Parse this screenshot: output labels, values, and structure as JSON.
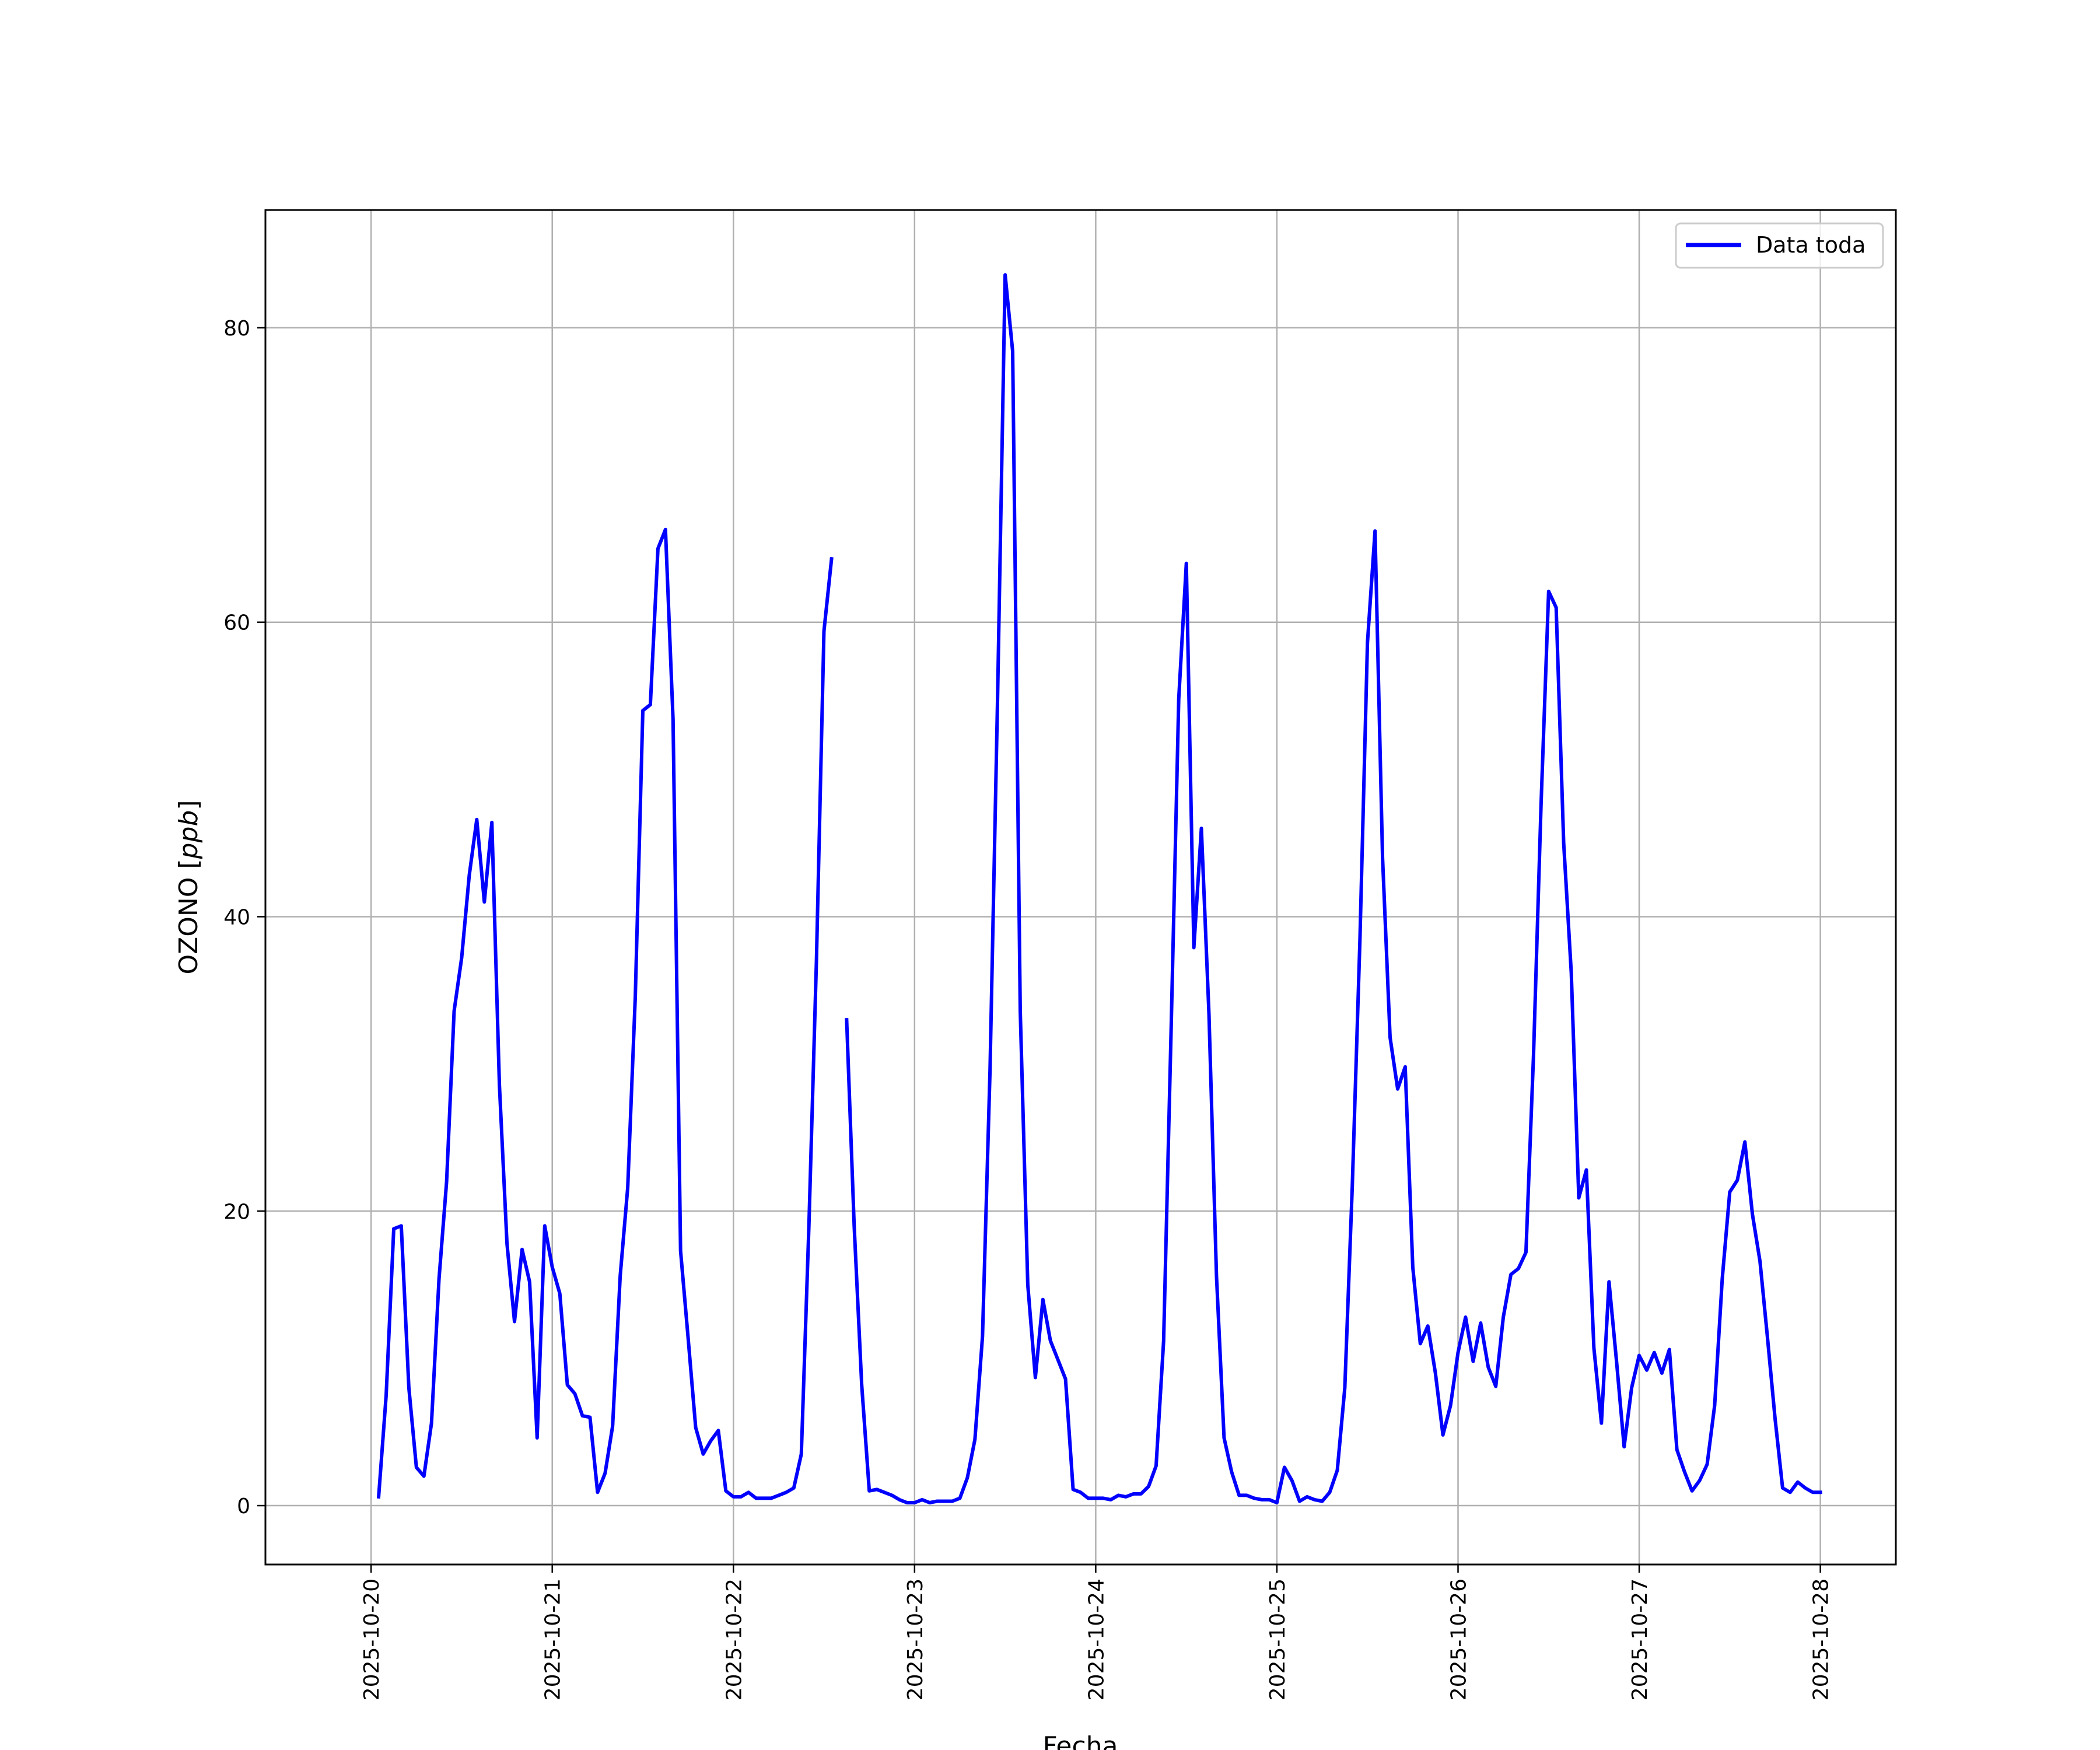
{
  "chart_data": {
    "type": "line",
    "xlabel": "Fecha",
    "ylabel_main": "OZONO [",
    "ylabel_unit": "ppb",
    "ylabel_end": "]",
    "x_ticks": [
      "2025-10-20",
      "2025-10-21",
      "2025-10-22",
      "2025-10-23",
      "2025-10-24",
      "2025-10-25",
      "2025-10-26",
      "2025-10-27",
      "2025-10-28"
    ],
    "y_ticks": [
      0,
      20,
      40,
      60,
      80
    ],
    "xlim": [
      "2025-10-19 10:00",
      "2025-10-28 10:00"
    ],
    "ylim": [
      -4,
      88
    ],
    "grid": true,
    "legend_position": "upper right",
    "line_color": "#0000ff",
    "series": [
      {
        "name": "Data toda",
        "segments": [
          [
            [
              "2025-10-20 01:00",
              0.6
            ],
            [
              "2025-10-20 02:00",
              7.5
            ],
            [
              "2025-10-20 03:00",
              18.8
            ],
            [
              "2025-10-20 04:00",
              19.0
            ],
            [
              "2025-10-20 05:00",
              8.0
            ],
            [
              "2025-10-20 06:00",
              2.6
            ],
            [
              "2025-10-20 07:00",
              2.0
            ],
            [
              "2025-10-20 08:00",
              5.6
            ],
            [
              "2025-10-20 09:00",
              15.4
            ],
            [
              "2025-10-20 10:00",
              22.0
            ],
            [
              "2025-10-20 11:00",
              33.6
            ],
            [
              "2025-10-20 12:00",
              37.2
            ],
            [
              "2025-10-20 13:00",
              42.8
            ],
            [
              "2025-10-20 14:00",
              46.6
            ],
            [
              "2025-10-20 15:00",
              41.0
            ],
            [
              "2025-10-20 16:00",
              46.4
            ],
            [
              "2025-10-20 17:00",
              28.6
            ],
            [
              "2025-10-20 18:00",
              17.8
            ],
            [
              "2025-10-20 19:00",
              12.5
            ],
            [
              "2025-10-20 20:00",
              17.4
            ],
            [
              "2025-10-20 21:00",
              15.2
            ],
            [
              "2025-10-20 22:00",
              4.6
            ],
            [
              "2025-10-20 23:00",
              19.0
            ],
            [
              "2025-10-21 00:00",
              16.2
            ],
            [
              "2025-10-21 01:00",
              14.4
            ],
            [
              "2025-10-21 02:00",
              8.2
            ],
            [
              "2025-10-21 03:00",
              7.6
            ],
            [
              "2025-10-21 04:00",
              6.1
            ],
            [
              "2025-10-21 05:00",
              6.0
            ],
            [
              "2025-10-21 06:00",
              0.9
            ],
            [
              "2025-10-21 07:00",
              2.2
            ],
            [
              "2025-10-21 08:00",
              5.4
            ],
            [
              "2025-10-21 09:00",
              15.6
            ],
            [
              "2025-10-21 10:00",
              21.6
            ],
            [
              "2025-10-21 11:00",
              34.6
            ],
            [
              "2025-10-21 12:00",
              54.0
            ],
            [
              "2025-10-21 13:00",
              54.4
            ],
            [
              "2025-10-21 14:00",
              65.0
            ],
            [
              "2025-10-21 15:00",
              66.3
            ],
            [
              "2025-10-21 16:00",
              53.4
            ],
            [
              "2025-10-21 17:00",
              17.3
            ],
            [
              "2025-10-21 18:00",
              11.4
            ],
            [
              "2025-10-21 19:00",
              5.3
            ],
            [
              "2025-10-21 20:00",
              3.5
            ],
            [
              "2025-10-21 21:00",
              4.4
            ],
            [
              "2025-10-21 22:00",
              5.1
            ],
            [
              "2025-10-21 23:00",
              1.0
            ],
            [
              "2025-10-22 00:00",
              0.6
            ],
            [
              "2025-10-22 01:00",
              0.6
            ],
            [
              "2025-10-22 02:00",
              0.9
            ],
            [
              "2025-10-22 03:00",
              0.5
            ],
            [
              "2025-10-22 04:00",
              0.5
            ],
            [
              "2025-10-22 05:00",
              0.5
            ],
            [
              "2025-10-22 06:00",
              0.7
            ],
            [
              "2025-10-22 07:00",
              0.9
            ],
            [
              "2025-10-22 08:00",
              1.2
            ],
            [
              "2025-10-22 09:00",
              3.5
            ],
            [
              "2025-10-22 10:00",
              19.0
            ],
            [
              "2025-10-22 11:00",
              37.0
            ],
            [
              "2025-10-22 12:00",
              59.4
            ],
            [
              "2025-10-22 13:00",
              64.3
            ]
          ],
          [
            [
              "2025-10-22 15:00",
              33.0
            ],
            [
              "2025-10-22 16:00",
              19.0
            ],
            [
              "2025-10-22 17:00",
              8.2
            ],
            [
              "2025-10-22 18:00",
              1.0
            ],
            [
              "2025-10-22 19:00",
              1.1
            ],
            [
              "2025-10-22 20:00",
              0.9
            ],
            [
              "2025-10-22 21:00",
              0.7
            ],
            [
              "2025-10-22 22:00",
              0.4
            ],
            [
              "2025-10-22 23:00",
              0.2
            ],
            [
              "2025-10-23 00:00",
              0.2
            ],
            [
              "2025-10-23 01:00",
              0.4
            ],
            [
              "2025-10-23 02:00",
              0.2
            ],
            [
              "2025-10-23 03:00",
              0.3
            ],
            [
              "2025-10-23 04:00",
              0.3
            ],
            [
              "2025-10-23 05:00",
              0.3
            ],
            [
              "2025-10-23 06:00",
              0.5
            ],
            [
              "2025-10-23 07:00",
              1.9
            ],
            [
              "2025-10-23 08:00",
              4.5
            ],
            [
              "2025-10-23 09:00",
              11.5
            ],
            [
              "2025-10-23 10:00",
              29.6
            ],
            [
              "2025-10-23 11:00",
              55.0
            ],
            [
              "2025-10-23 12:00",
              83.6
            ],
            [
              "2025-10-23 13:00",
              78.4
            ],
            [
              "2025-10-23 14:00",
              33.6
            ],
            [
              "2025-10-23 15:00",
              15.0
            ],
            [
              "2025-10-23 16:00",
              8.7
            ],
            [
              "2025-10-23 17:00",
              14.0
            ],
            [
              "2025-10-23 18:00",
              11.2
            ],
            [
              "2025-10-23 19:00",
              9.9
            ],
            [
              "2025-10-23 20:00",
              8.6
            ],
            [
              "2025-10-23 21:00",
              1.1
            ],
            [
              "2025-10-23 22:00",
              0.9
            ],
            [
              "2025-10-23 23:00",
              0.5
            ],
            [
              "2025-10-24 00:00",
              0.5
            ],
            [
              "2025-10-24 01:00",
              0.5
            ],
            [
              "2025-10-24 02:00",
              0.4
            ],
            [
              "2025-10-24 03:00",
              0.7
            ],
            [
              "2025-10-24 04:00",
              0.6
            ],
            [
              "2025-10-24 05:00",
              0.8
            ],
            [
              "2025-10-24 06:00",
              0.8
            ],
            [
              "2025-10-24 07:00",
              1.3
            ],
            [
              "2025-10-24 08:00",
              2.7
            ],
            [
              "2025-10-24 09:00",
              11.2
            ],
            [
              "2025-10-24 10:00",
              32.6
            ],
            [
              "2025-10-24 11:00",
              54.8
            ],
            [
              "2025-10-24 12:00",
              64.0
            ],
            [
              "2025-10-24 13:00",
              37.9
            ],
            [
              "2025-10-24 14:00",
              46.0
            ],
            [
              "2025-10-24 15:00",
              33.4
            ],
            [
              "2025-10-24 16:00",
              15.6
            ],
            [
              "2025-10-24 17:00",
              4.6
            ],
            [
              "2025-10-24 18:00",
              2.3
            ],
            [
              "2025-10-24 19:00",
              0.7
            ],
            [
              "2025-10-24 20:00",
              0.7
            ],
            [
              "2025-10-24 21:00",
              0.5
            ],
            [
              "2025-10-24 22:00",
              0.4
            ],
            [
              "2025-10-24 23:00",
              0.4
            ],
            [
              "2025-10-25 00:00",
              0.2
            ],
            [
              "2025-10-25 01:00",
              2.6
            ],
            [
              "2025-10-25 02:00",
              1.7
            ],
            [
              "2025-10-25 03:00",
              0.3
            ],
            [
              "2025-10-25 04:00",
              0.6
            ],
            [
              "2025-10-25 05:00",
              0.4
            ],
            [
              "2025-10-25 06:00",
              0.3
            ],
            [
              "2025-10-25 07:00",
              0.9
            ],
            [
              "2025-10-25 08:00",
              2.4
            ],
            [
              "2025-10-25 09:00",
              8.0
            ],
            [
              "2025-10-25 10:00",
              21.8
            ],
            [
              "2025-10-25 11:00",
              38.4
            ],
            [
              "2025-10-25 12:00",
              58.6
            ],
            [
              "2025-10-25 13:00",
              66.2
            ],
            [
              "2025-10-25 14:00",
              44.0
            ],
            [
              "2025-10-25 15:00",
              31.8
            ],
            [
              "2025-10-25 16:00",
              28.3
            ],
            [
              "2025-10-25 17:00",
              29.8
            ],
            [
              "2025-10-25 18:00",
              16.2
            ],
            [
              "2025-10-25 19:00",
              11.0
            ],
            [
              "2025-10-25 20:00",
              12.2
            ],
            [
              "2025-10-25 21:00",
              9.0
            ],
            [
              "2025-10-25 22:00",
              4.8
            ],
            [
              "2025-10-25 23:00",
              6.8
            ],
            [
              "2025-10-26 00:00",
              10.4
            ],
            [
              "2025-10-26 01:00",
              12.8
            ],
            [
              "2025-10-26 02:00",
              9.8
            ],
            [
              "2025-10-26 03:00",
              12.4
            ],
            [
              "2025-10-26 04:00",
              9.4
            ],
            [
              "2025-10-26 05:00",
              8.1
            ],
            [
              "2025-10-26 06:00",
              12.8
            ],
            [
              "2025-10-26 07:00",
              15.7
            ],
            [
              "2025-10-26 08:00",
              16.1
            ],
            [
              "2025-10-26 09:00",
              17.2
            ],
            [
              "2025-10-26 10:00",
              30.6
            ],
            [
              "2025-10-26 11:00",
              47.6
            ],
            [
              "2025-10-26 12:00",
              62.1
            ],
            [
              "2025-10-26 13:00",
              61.0
            ],
            [
              "2025-10-26 14:00",
              45.0
            ],
            [
              "2025-10-26 15:00",
              36.2
            ],
            [
              "2025-10-26 16:00",
              20.9
            ],
            [
              "2025-10-26 17:00",
              22.8
            ],
            [
              "2025-10-26 18:00",
              10.7
            ],
            [
              "2025-10-26 19:00",
              5.6
            ],
            [
              "2025-10-26 20:00",
              15.2
            ],
            [
              "2025-10-26 21:00",
              9.8
            ],
            [
              "2025-10-26 22:00",
              4.0
            ],
            [
              "2025-10-26 23:00",
              8.0
            ],
            [
              "2025-10-27 00:00",
              10.2
            ],
            [
              "2025-10-27 01:00",
              9.2
            ],
            [
              "2025-10-27 02:00",
              10.4
            ],
            [
              "2025-10-27 03:00",
              9.0
            ],
            [
              "2025-10-27 04:00",
              10.6
            ],
            [
              "2025-10-27 05:00",
              3.8
            ],
            [
              "2025-10-27 06:00",
              2.3
            ],
            [
              "2025-10-27 07:00",
              1.0
            ],
            [
              "2025-10-27 08:00",
              1.7
            ],
            [
              "2025-10-27 09:00",
              2.8
            ],
            [
              "2025-10-27 10:00",
              6.8
            ],
            [
              "2025-10-27 11:00",
              15.4
            ],
            [
              "2025-10-27 12:00",
              21.3
            ],
            [
              "2025-10-27 13:00",
              22.1
            ],
            [
              "2025-10-27 14:00",
              24.7
            ],
            [
              "2025-10-27 15:00",
              19.8
            ],
            [
              "2025-10-27 16:00",
              16.6
            ],
            [
              "2025-10-27 17:00",
              11.4
            ],
            [
              "2025-10-27 18:00",
              5.9
            ],
            [
              "2025-10-27 19:00",
              1.2
            ],
            [
              "2025-10-27 20:00",
              0.9
            ],
            [
              "2025-10-27 21:00",
              1.6
            ],
            [
              "2025-10-27 22:00",
              1.2
            ],
            [
              "2025-10-27 23:00",
              0.9
            ],
            [
              "2025-10-28 00:00",
              0.9
            ]
          ]
        ]
      }
    ]
  }
}
